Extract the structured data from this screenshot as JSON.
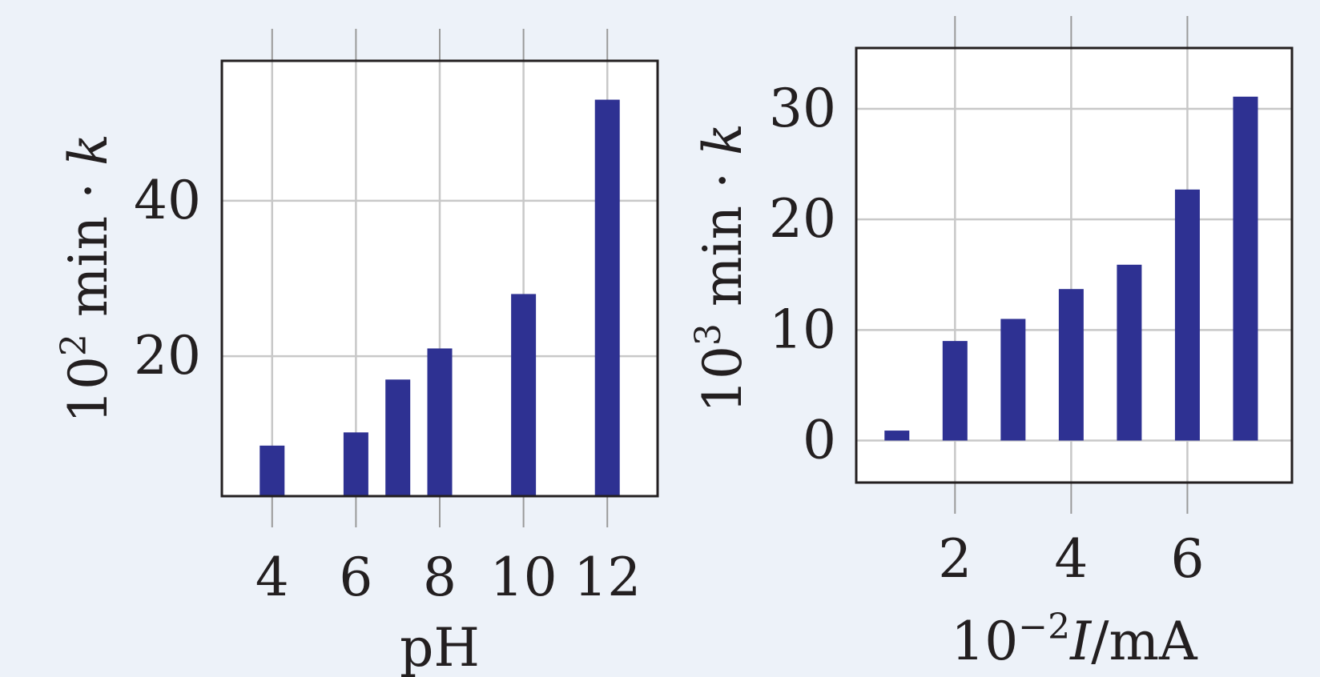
{
  "colors": {
    "background": "#edf2f9",
    "plot_background": "#ffffff",
    "bar": "#2e3192",
    "grid": "#c8c8c8",
    "axis": "#231f20",
    "text": "#231f20"
  },
  "chart_data": [
    {
      "type": "bar",
      "x": [
        4,
        6,
        7,
        8,
        10,
        12
      ],
      "values": [
        8.5,
        10.2,
        17.0,
        21.0,
        28.0,
        53.0
      ],
      "xlabel": "pH",
      "ylabel": {
        "prefix": "10",
        "exponent": "2",
        "unit": " min · ",
        "symbol": "k"
      },
      "xticks": [
        4,
        6,
        8,
        10,
        12
      ],
      "yticks": [
        20,
        40
      ],
      "xlim": [
        2.8,
        13.2
      ],
      "ylim": [
        2,
        58
      ],
      "grid": true,
      "legend": "none"
    },
    {
      "type": "bar",
      "x": [
        1,
        2,
        3,
        4,
        5,
        6,
        7
      ],
      "values": [
        0.9,
        9.0,
        11.0,
        13.7,
        15.9,
        22.7,
        31.1
      ],
      "xlabel": {
        "prefix": "10",
        "exponent": "−2",
        "symbol": "I",
        "unit": "/mA"
      },
      "ylabel": {
        "prefix": "10",
        "exponent": "3",
        "unit": " min · ",
        "symbol": "k"
      },
      "xticks": [
        2,
        4,
        6
      ],
      "yticks": [
        0,
        10,
        20,
        30
      ],
      "xlim": [
        0.3,
        7.8
      ],
      "ylim": [
        -3.8,
        35.5
      ],
      "grid": true,
      "legend": "none"
    }
  ]
}
